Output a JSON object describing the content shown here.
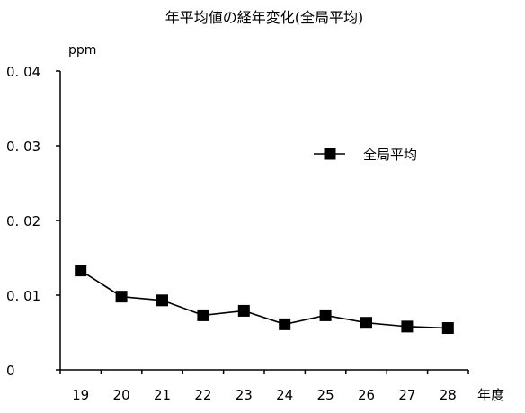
{
  "chart_data": {
    "type": "line",
    "title": "年平均値の経年変化(全局平均)",
    "ylabel": "ppm",
    "xlabel": "年度",
    "ylim": [
      0,
      0.04
    ],
    "yticks": [
      "0",
      "0. 01",
      "0. 02",
      "0. 03",
      "0. 04"
    ],
    "categories": [
      "19",
      "20",
      "21",
      "22",
      "23",
      "24",
      "25",
      "26",
      "27",
      "28"
    ],
    "series": [
      {
        "name": "全局平均",
        "values": [
          0.0133,
          0.0098,
          0.0093,
          0.0073,
          0.0079,
          0.0061,
          0.0073,
          0.0063,
          0.0058,
          0.0056
        ]
      }
    ],
    "legend": "right",
    "grid": false,
    "colors": {
      "line": "#000000",
      "marker": "#000000",
      "axis": "#000000"
    }
  }
}
